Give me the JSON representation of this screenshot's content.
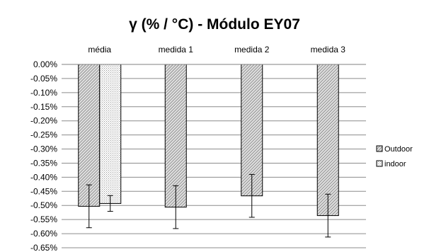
{
  "chart_data": {
    "type": "bar",
    "title": "γ (% / °C) - Módulo EY07",
    "categories": [
      "média",
      "medida 1",
      "medida 2",
      "medida 3"
    ],
    "series": [
      {
        "name": "Outdoor",
        "values": [
          -0.503,
          -0.506,
          -0.466,
          -0.536
        ],
        "error": [
          0.076,
          0.076,
          0.076,
          0.076
        ],
        "pattern": "dense-diagonal",
        "color": "#555555"
      },
      {
        "name": "indoor",
        "values": [
          -0.493,
          null,
          null,
          null
        ],
        "error": [
          0.028,
          null,
          null,
          null
        ],
        "pattern": "fine-dots",
        "color": "#777777"
      }
    ],
    "xlabel": "",
    "ylabel": "",
    "ylim": [
      -0.65,
      0.0
    ],
    "y_step": 0.05,
    "y_tick_labels": [
      "0.00%",
      "-0.05%",
      "-0.10%",
      "-0.15%",
      "-0.20%",
      "-0.25%",
      "-0.30%",
      "-0.35%",
      "-0.40%",
      "-0.45%",
      "-0.50%",
      "-0.55%",
      "-0.60%",
      "-0.65%"
    ],
    "x_axis_position": "top",
    "grid": true,
    "legend_position": "right"
  }
}
